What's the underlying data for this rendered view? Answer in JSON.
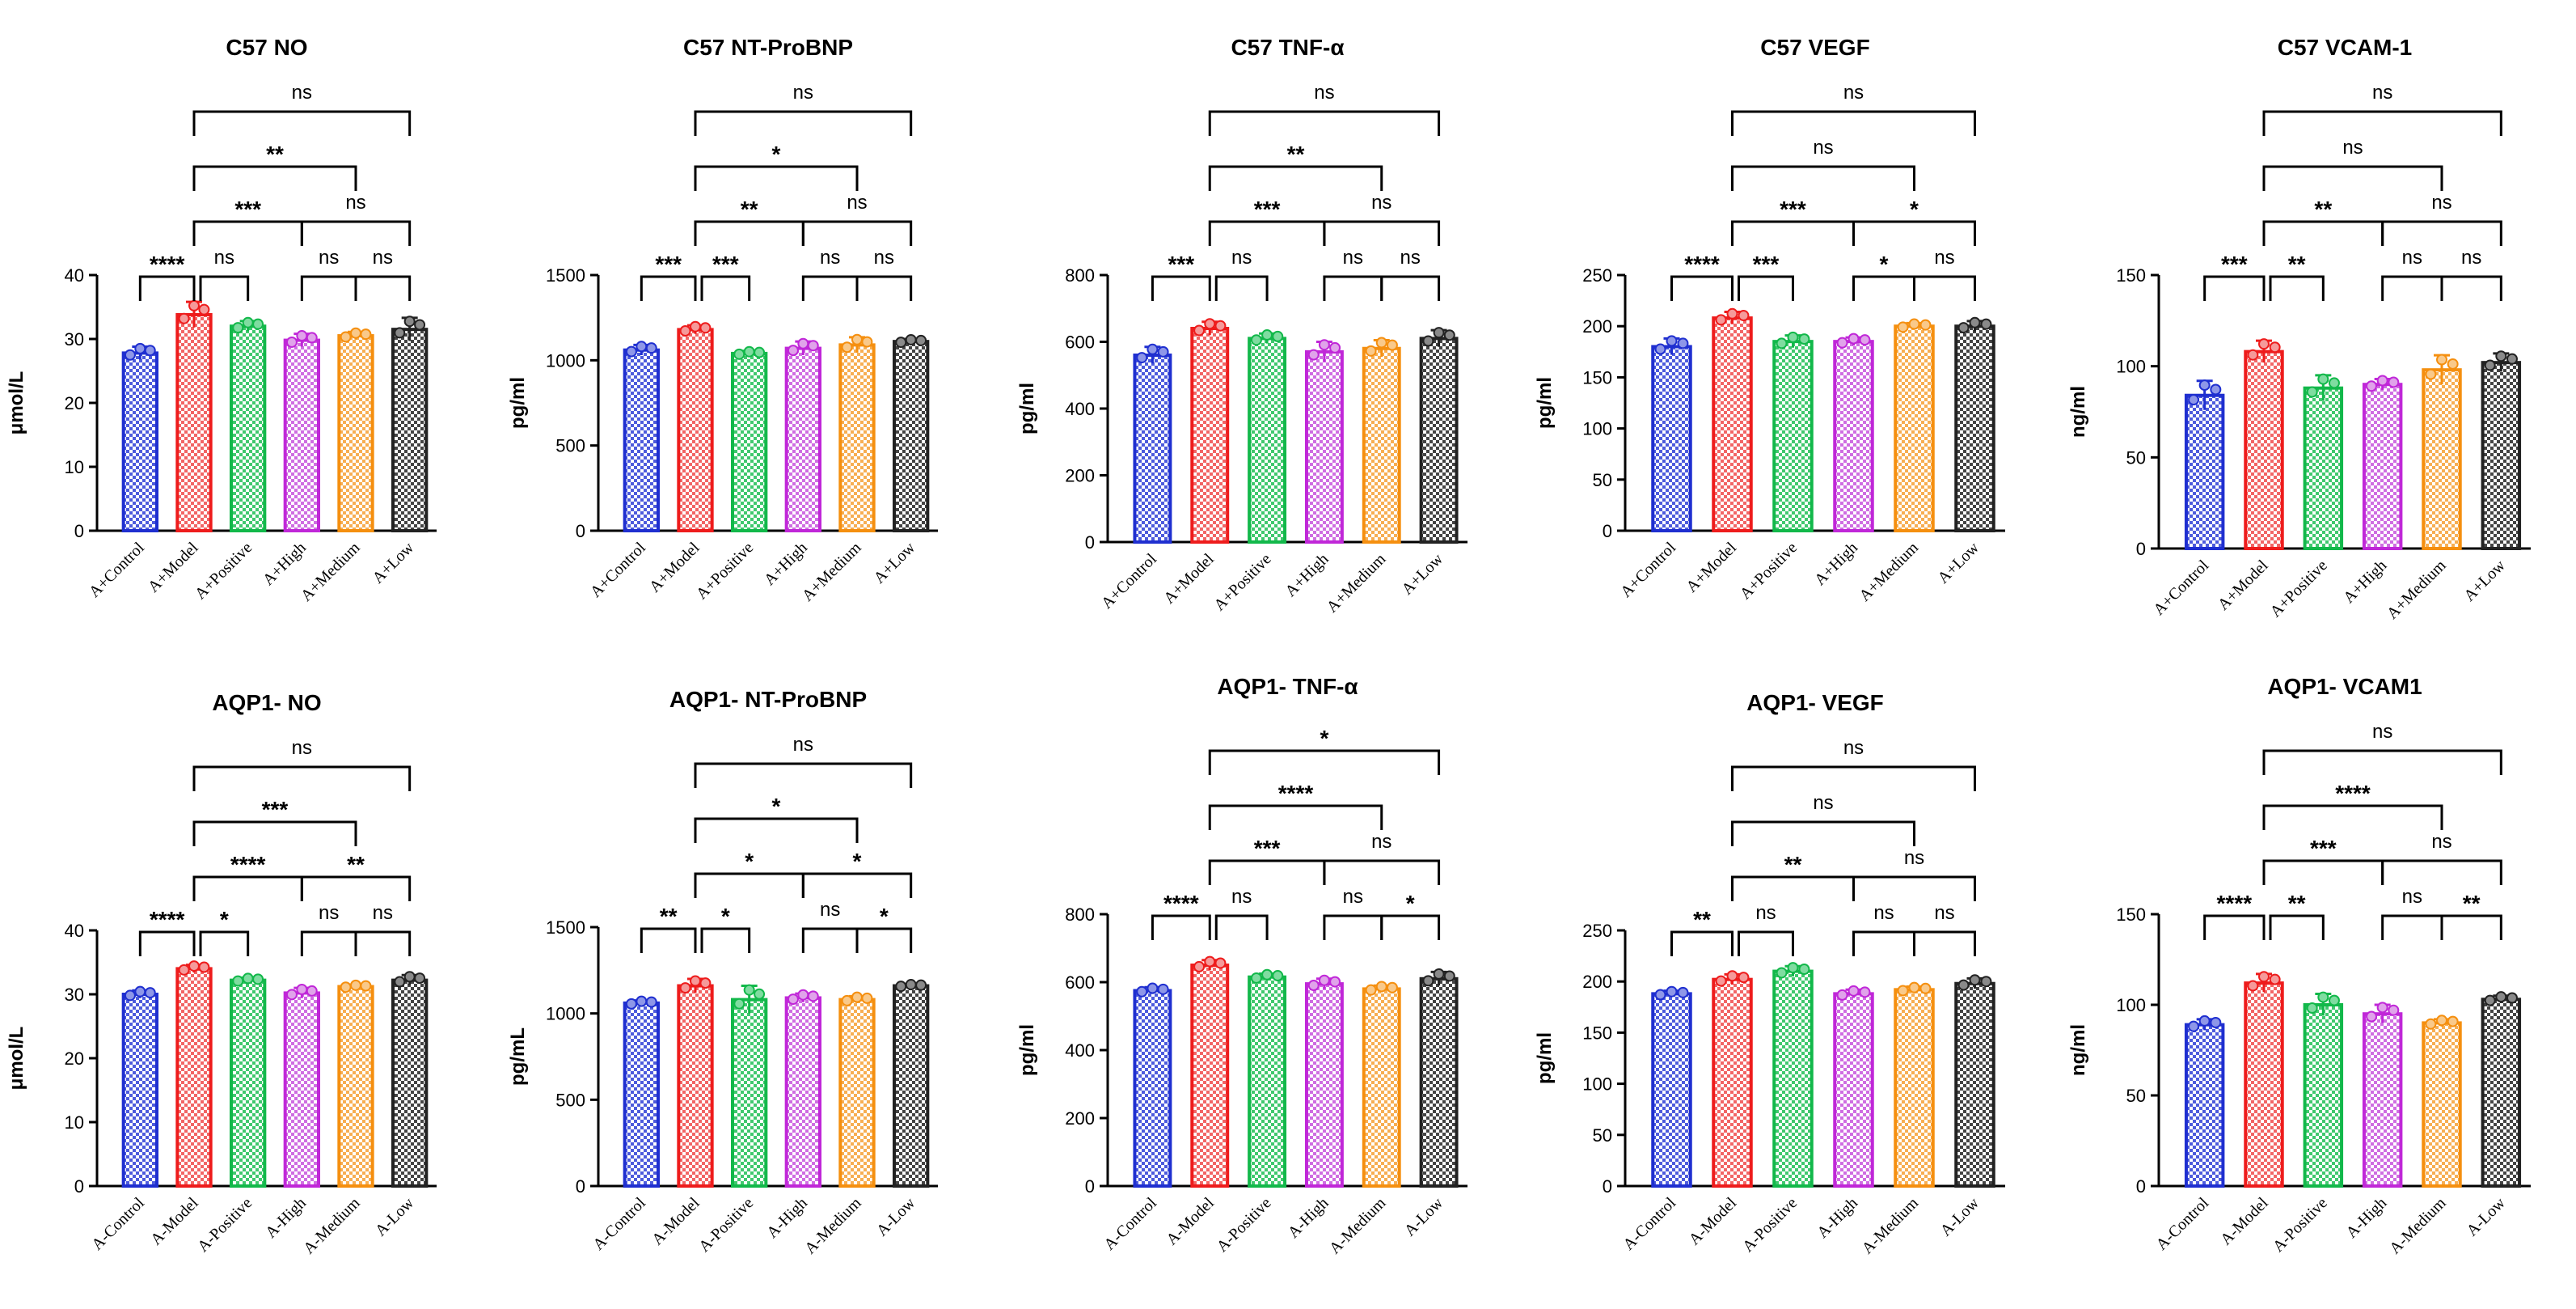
{
  "chart_data": [
    {
      "type": "bar",
      "title": "C57 NO",
      "ylabel": "μmol/L",
      "ylim": [
        0,
        40
      ],
      "yticks": [
        0,
        10,
        20,
        30,
        40
      ],
      "categories": [
        "A+Control",
        "A+Model",
        "A+Positive",
        "A+High",
        "A+Medium",
        "A+Low"
      ],
      "values": [
        27.8,
        33.8,
        32.0,
        29.8,
        30.5,
        31.5
      ],
      "errors": [
        1.0,
        2.0,
        0.8,
        1.0,
        0.6,
        1.8
      ],
      "comparisons": [
        {
          "from": 0,
          "to": 1,
          "label": "****"
        },
        {
          "from": 1,
          "to": 2,
          "label": "ns"
        },
        {
          "from": 3,
          "to": 4,
          "label": "ns"
        },
        {
          "from": 4,
          "to": 5,
          "label": "ns"
        },
        {
          "from": 1,
          "to": 3,
          "label": "***"
        },
        {
          "from": 3,
          "to": 5,
          "label": "ns"
        },
        {
          "from": 1,
          "to": 4,
          "label": "**"
        },
        {
          "from": 1,
          "to": 5,
          "label": "ns"
        }
      ]
    },
    {
      "type": "bar",
      "title": "C57 NT-ProBNP",
      "ylabel": "pg/ml",
      "ylim": [
        0,
        1500
      ],
      "yticks": [
        0,
        500,
        1000,
        1500
      ],
      "categories": [
        "A+Control",
        "A+Model",
        "A+Positive",
        "A+High",
        "A+Medium",
        "A+Low"
      ],
      "values": [
        1060,
        1180,
        1040,
        1070,
        1090,
        1110
      ],
      "errors": [
        30,
        25,
        15,
        40,
        45,
        15
      ],
      "comparisons": [
        {
          "from": 0,
          "to": 1,
          "label": "***"
        },
        {
          "from": 1,
          "to": 2,
          "label": "***"
        },
        {
          "from": 3,
          "to": 4,
          "label": "ns"
        },
        {
          "from": 4,
          "to": 5,
          "label": "ns"
        },
        {
          "from": 1,
          "to": 3,
          "label": "**"
        },
        {
          "from": 3,
          "to": 5,
          "label": "ns"
        },
        {
          "from": 1,
          "to": 4,
          "label": "*"
        },
        {
          "from": 1,
          "to": 5,
          "label": "ns"
        }
      ]
    },
    {
      "type": "bar",
      "title": "C57 TNF-α",
      "ylabel": "pg/ml",
      "ylim": [
        0,
        800
      ],
      "yticks": [
        0,
        200,
        400,
        600,
        800
      ],
      "categories": [
        "A+Control",
        "A+Model",
        "A+Positive",
        "A+High",
        "A+Medium",
        "A+Low"
      ],
      "values": [
        560,
        640,
        610,
        570,
        580,
        610
      ],
      "errors": [
        25,
        20,
        15,
        30,
        25,
        25
      ],
      "comparisons": [
        {
          "from": 0,
          "to": 1,
          "label": "***"
        },
        {
          "from": 1,
          "to": 2,
          "label": "ns"
        },
        {
          "from": 3,
          "to": 4,
          "label": "ns"
        },
        {
          "from": 4,
          "to": 5,
          "label": "ns"
        },
        {
          "from": 1,
          "to": 3,
          "label": "***"
        },
        {
          "from": 3,
          "to": 5,
          "label": "ns"
        },
        {
          "from": 1,
          "to": 4,
          "label": "**"
        },
        {
          "from": 1,
          "to": 5,
          "label": "ns"
        }
      ]
    },
    {
      "type": "bar",
      "title": "C57 VEGF",
      "ylabel": "pg/ml",
      "ylim": [
        0,
        250
      ],
      "yticks": [
        0,
        50,
        100,
        150,
        200,
        250
      ],
      "categories": [
        "A+Control",
        "A+Model",
        "A+Positive",
        "A+High",
        "A+Medium",
        "A+Low"
      ],
      "values": [
        180,
        208,
        185,
        185,
        200,
        200
      ],
      "errors": [
        8,
        6,
        6,
        4,
        3,
        5
      ],
      "comparisons": [
        {
          "from": 0,
          "to": 1,
          "label": "****"
        },
        {
          "from": 1,
          "to": 3,
          "label": "***"
        },
        {
          "from": 3,
          "to": 4,
          "label": "*"
        },
        {
          "from": 4,
          "to": 5,
          "label": "ns"
        },
        {
          "from": 1,
          "to": 2,
          "label": "***"
        },
        {
          "from": 3,
          "to": 5,
          "label": "*"
        },
        {
          "from": 1,
          "to": 4,
          "label": "ns"
        },
        {
          "from": 1,
          "to": 5,
          "label": "ns"
        }
      ]
    },
    {
      "type": "bar",
      "title": "C57 VCAM-1",
      "ylabel": "ng/ml",
      "ylim": [
        0,
        150
      ],
      "yticks": [
        0,
        50,
        100,
        150
      ],
      "categories": [
        "A+Control",
        "A+Model",
        "A+Positive",
        "A+High",
        "A+Medium",
        "A+Low"
      ],
      "values": [
        84,
        108,
        88,
        90,
        98,
        102
      ],
      "errors": [
        8,
        6,
        7,
        3,
        8,
        5
      ],
      "comparisons": [
        {
          "from": 0,
          "to": 1,
          "label": "***"
        },
        {
          "from": 1,
          "to": 2,
          "label": "**"
        },
        {
          "from": 3,
          "to": 4,
          "label": "ns"
        },
        {
          "from": 4,
          "to": 5,
          "label": "ns"
        },
        {
          "from": 1,
          "to": 3,
          "label": "**"
        },
        {
          "from": 3,
          "to": 5,
          "label": "ns"
        },
        {
          "from": 1,
          "to": 4,
          "label": "ns"
        },
        {
          "from": 1,
          "to": 5,
          "label": "ns"
        }
      ]
    },
    {
      "type": "bar",
      "title": "AQP1- NO",
      "ylabel": "μmol/L",
      "ylim": [
        0,
        40
      ],
      "yticks": [
        0,
        10,
        20,
        30,
        40
      ],
      "categories": [
        "A-Control",
        "A-Model",
        "A-Positive",
        "A-High",
        "A-Medium",
        "A-Low"
      ],
      "values": [
        30.0,
        34.0,
        32.2,
        30.2,
        31.2,
        32.2
      ],
      "errors": [
        0.6,
        0.6,
        0.4,
        0.8,
        0.3,
        0.8
      ],
      "comparisons": [
        {
          "from": 0,
          "to": 1,
          "label": "****"
        },
        {
          "from": 1,
          "to": 2,
          "label": "*"
        },
        {
          "from": 3,
          "to": 4,
          "label": "ns"
        },
        {
          "from": 4,
          "to": 5,
          "label": "ns"
        },
        {
          "from": 1,
          "to": 3,
          "label": "****"
        },
        {
          "from": 3,
          "to": 5,
          "label": "**"
        },
        {
          "from": 1,
          "to": 4,
          "label": "***"
        },
        {
          "from": 1,
          "to": 5,
          "label": "ns"
        }
      ]
    },
    {
      "type": "bar",
      "title": "AQP1- NT-ProBNP",
      "ylabel": "pg/mL",
      "ylim": [
        0,
        1500
      ],
      "yticks": [
        0,
        500,
        1000,
        1500
      ],
      "categories": [
        "A-Control",
        "A-Model",
        "A-Positive",
        "A-High",
        "A-Medium",
        "A-Low"
      ],
      "values": [
        1060,
        1160,
        1080,
        1090,
        1080,
        1160
      ],
      "errors": [
        15,
        40,
        80,
        25,
        20,
        10
      ],
      "comparisons": [
        {
          "from": 0,
          "to": 1,
          "label": "**"
        },
        {
          "from": 1,
          "to": 2,
          "label": "*"
        },
        {
          "from": 3,
          "to": 4,
          "label": "ns"
        },
        {
          "from": 4,
          "to": 5,
          "label": "*"
        },
        {
          "from": 1,
          "to": 3,
          "label": "*"
        },
        {
          "from": 3,
          "to": 5,
          "label": "*"
        },
        {
          "from": 1,
          "to": 4,
          "label": "*"
        },
        {
          "from": 1,
          "to": 5,
          "label": "ns"
        }
      ]
    },
    {
      "type": "bar",
      "title": "AQP1- TNF-α",
      "ylabel": "pg/ml",
      "ylim": [
        0,
        800
      ],
      "yticks": [
        0,
        200,
        400,
        600,
        800
      ],
      "categories": [
        "A-Control",
        "A-Model",
        "A-Positive",
        "A-High",
        "A-Medium",
        "A-Low"
      ],
      "values": [
        575,
        650,
        615,
        595,
        580,
        610
      ],
      "errors": [
        10,
        15,
        10,
        15,
        10,
        20
      ],
      "comparisons": [
        {
          "from": 0,
          "to": 1,
          "label": "****"
        },
        {
          "from": 1,
          "to": 2,
          "label": "ns"
        },
        {
          "from": 3,
          "to": 4,
          "label": "ns"
        },
        {
          "from": 4,
          "to": 5,
          "label": "*"
        },
        {
          "from": 1,
          "to": 3,
          "label": "***"
        },
        {
          "from": 3,
          "to": 5,
          "label": "ns"
        },
        {
          "from": 1,
          "to": 4,
          "label": "****"
        },
        {
          "from": 1,
          "to": 5,
          "label": "*"
        }
      ]
    },
    {
      "type": "bar",
      "title": "AQP1- VEGF",
      "ylabel": "pg/ml",
      "ylim": [
        0,
        250
      ],
      "yticks": [
        0,
        50,
        100,
        150,
        200,
        250
      ],
      "categories": [
        "A-Control",
        "A-Model",
        "A-Positive",
        "A-High",
        "A-Medium",
        "A-Low"
      ],
      "values": [
        188,
        202,
        210,
        188,
        192,
        198
      ],
      "errors": [
        3,
        5,
        5,
        4,
        3,
        5
      ],
      "comparisons": [
        {
          "from": 0,
          "to": 1,
          "label": "**"
        },
        {
          "from": 1,
          "to": 2,
          "label": "ns"
        },
        {
          "from": 3,
          "to": 4,
          "label": "ns"
        },
        {
          "from": 4,
          "to": 5,
          "label": "ns"
        },
        {
          "from": 1,
          "to": 3,
          "label": "**"
        },
        {
          "from": 3,
          "to": 5,
          "label": "ns"
        },
        {
          "from": 1,
          "to": 4,
          "label": "ns"
        },
        {
          "from": 1,
          "to": 5,
          "label": "ns"
        }
      ]
    },
    {
      "type": "bar",
      "title": "AQP1- VCAM1",
      "ylabel": "ng/ml",
      "ylim": [
        0,
        150
      ],
      "yticks": [
        0,
        50,
        100,
        150
      ],
      "categories": [
        "A-Control",
        "A-Model",
        "A-Positive",
        "A-High",
        "A-Medium",
        "A-Low"
      ],
      "values": [
        89,
        112,
        100,
        95,
        90,
        103
      ],
      "errors": [
        3,
        5,
        6,
        5,
        2,
        2
      ],
      "comparisons": [
        {
          "from": 0,
          "to": 1,
          "label": "****"
        },
        {
          "from": 1,
          "to": 2,
          "label": "**"
        },
        {
          "from": 3,
          "to": 4,
          "label": "ns"
        },
        {
          "from": 4,
          "to": 5,
          "label": "**"
        },
        {
          "from": 1,
          "to": 3,
          "label": "***"
        },
        {
          "from": 3,
          "to": 5,
          "label": "ns"
        },
        {
          "from": 1,
          "to": 4,
          "label": "****"
        },
        {
          "from": 1,
          "to": 5,
          "label": "ns"
        }
      ]
    }
  ],
  "colors": {
    "bars": [
      "#1f2fd0",
      "#ee1c1c",
      "#12b84a",
      "#c027d8",
      "#f58f0f",
      "#222222"
    ],
    "fills": [
      "#8e97e8",
      "#f59a9a",
      "#7fdca0",
      "#e0a3ea",
      "#f9c98a",
      "#8a8a8a"
    ]
  }
}
